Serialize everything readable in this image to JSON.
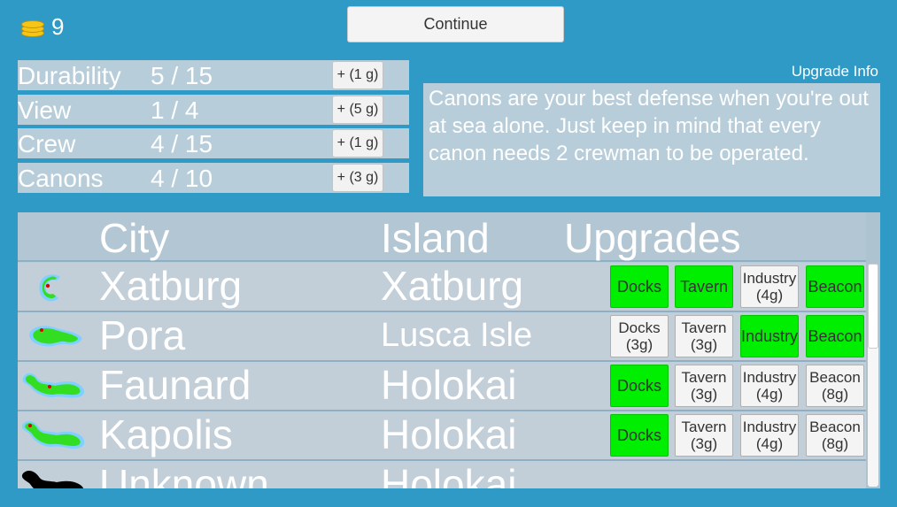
{
  "gold": {
    "amount": "9",
    "icon": "coins-icon",
    "color": "#f5c518"
  },
  "continue_label": "Continue",
  "stats": [
    {
      "name": "Durability",
      "value": "5 / 15",
      "button": "+ (1 g)"
    },
    {
      "name": "View",
      "value": "1 / 4",
      "button": "+ (5 g)"
    },
    {
      "name": "Crew",
      "value": "4 / 15",
      "button": "+ (1 g)"
    },
    {
      "name": "Canons",
      "value": "4 / 10",
      "button": "+ (3 g)"
    }
  ],
  "upgrade_info": {
    "title": "Upgrade Info",
    "text": "Canons are your best defense when you're out at sea alone. Just keep in mind that every canon needs 2 crewman to be operated."
  },
  "table": {
    "headers": {
      "city": "City",
      "island": "Island",
      "upgrades": "Upgrades"
    },
    "rows": [
      {
        "city": "Xatburg",
        "island": "Xatburg",
        "icon": "island-xatburg-icon",
        "upgrades": [
          {
            "name": "Docks",
            "cost": "",
            "state": "bought"
          },
          {
            "name": "Tavern",
            "cost": "",
            "state": "bought"
          },
          {
            "name": "Industry",
            "cost": "(4g)",
            "state": "available"
          },
          {
            "name": "Beacon",
            "cost": "",
            "state": "bought"
          }
        ]
      },
      {
        "city": "Pora",
        "island": "Lusca Isle",
        "icon": "island-lusca-icon",
        "upgrades": [
          {
            "name": "Docks",
            "cost": "(3g)",
            "state": "available"
          },
          {
            "name": "Tavern",
            "cost": "(3g)",
            "state": "available"
          },
          {
            "name": "Industry",
            "cost": "",
            "state": "bought"
          },
          {
            "name": "Beacon",
            "cost": "",
            "state": "bought"
          }
        ]
      },
      {
        "city": "Faunard",
        "island": "Holokai",
        "icon": "island-holokai-icon",
        "upgrades": [
          {
            "name": "Docks",
            "cost": "",
            "state": "bought"
          },
          {
            "name": "Tavern",
            "cost": "(3g)",
            "state": "available"
          },
          {
            "name": "Industry",
            "cost": "(4g)",
            "state": "available"
          },
          {
            "name": "Beacon",
            "cost": "(8g)",
            "state": "available"
          }
        ]
      },
      {
        "city": "Kapolis",
        "island": "Holokai",
        "icon": "island-holokai-icon",
        "upgrades": [
          {
            "name": "Docks",
            "cost": "",
            "state": "bought"
          },
          {
            "name": "Tavern",
            "cost": "(3g)",
            "state": "available"
          },
          {
            "name": "Industry",
            "cost": "(4g)",
            "state": "available"
          },
          {
            "name": "Beacon",
            "cost": "(8g)",
            "state": "available"
          }
        ]
      },
      {
        "city": "Unknown",
        "island": "Holokai",
        "icon": "island-unknown-icon",
        "upgrades": []
      }
    ]
  },
  "colors": {
    "background": "#2f9ac6",
    "panel": "#b7cdda",
    "bought": "#00ee00",
    "island_land": "#33dd22",
    "island_shore": "#7fd0ff",
    "city_marker": "#dd0000"
  }
}
